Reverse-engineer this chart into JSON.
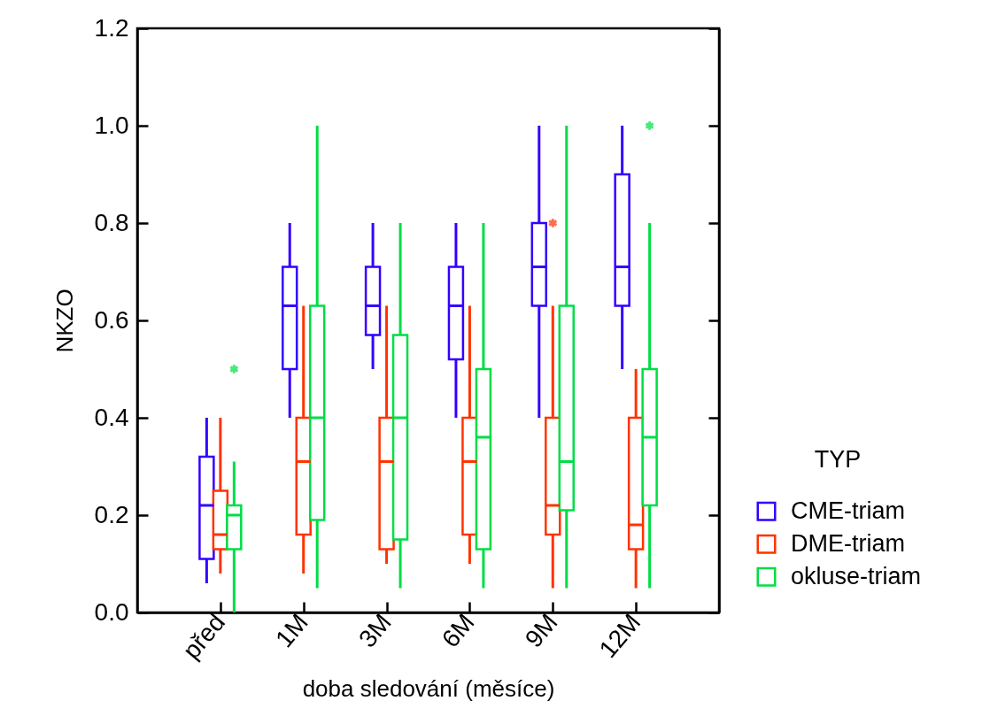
{
  "chart_data": {
    "type": "box",
    "xlabel": "doba sledování (měsíce)",
    "ylabel": "NKZO",
    "legend_title": "TYP",
    "legend": "right",
    "categories": [
      "před",
      "1M",
      "3M",
      "6M",
      "9M",
      "12M"
    ],
    "ylim": [
      0,
      1.2
    ],
    "yticks": [
      {
        "value": 0,
        "label": "0.0"
      },
      0.2,
      0.4,
      0.6,
      0.8,
      {
        "value": 1,
        "label": "1.0"
      },
      1.2
    ],
    "series": [
      {
        "name": "CME-triam",
        "color": "#3300ff",
        "boxes": [
          {
            "low": 0.06,
            "q1": 0.11,
            "median": 0.22,
            "q3": 0.32,
            "high": 0.4
          },
          {
            "low": 0.4,
            "q1": 0.5,
            "median": 0.63,
            "q3": 0.71,
            "high": 0.8
          },
          {
            "low": 0.5,
            "q1": 0.57,
            "median": 0.63,
            "q3": 0.71,
            "high": 0.8
          },
          {
            "low": 0.4,
            "q1": 0.52,
            "median": 0.63,
            "q3": 0.71,
            "high": 0.8
          },
          {
            "low": 0.4,
            "q1": 0.63,
            "median": 0.71,
            "q3": 0.8,
            "high": 1.0
          },
          {
            "low": 0.5,
            "q1": 0.63,
            "median": 0.71,
            "q3": 0.9,
            "high": 1.0
          }
        ]
      },
      {
        "name": "DME-triam",
        "color": "#ff3300",
        "boxes": [
          {
            "low": 0.08,
            "q1": 0.13,
            "median": 0.16,
            "q3": 0.25,
            "high": 0.4
          },
          {
            "low": 0.08,
            "q1": 0.16,
            "median": 0.31,
            "q3": 0.4,
            "high": 0.63
          },
          {
            "low": 0.1,
            "q1": 0.13,
            "median": 0.31,
            "q3": 0.4,
            "high": 0.63
          },
          {
            "low": 0.1,
            "q1": 0.16,
            "median": 0.31,
            "q3": 0.4,
            "high": 0.63
          },
          {
            "low": 0.05,
            "q1": 0.16,
            "median": 0.22,
            "q3": 0.4,
            "high": 0.63,
            "outliers": [
              0.8
            ]
          },
          {
            "low": 0.05,
            "q1": 0.13,
            "median": 0.18,
            "q3": 0.4,
            "high": 0.5
          }
        ]
      },
      {
        "name": "okluse-triam",
        "color": "#00dd44",
        "boxes": [
          {
            "low": 0,
            "q1": 0.13,
            "median": 0.2,
            "q3": 0.22,
            "high": 0.31,
            "outliers": [
              0.5
            ]
          },
          {
            "low": 0.05,
            "q1": 0.19,
            "median": 0.4,
            "q3": 0.63,
            "high": 1.0
          },
          {
            "low": 0.05,
            "q1": 0.15,
            "median": 0.4,
            "q3": 0.57,
            "high": 0.8
          },
          {
            "low": 0.05,
            "q1": 0.13,
            "median": 0.36,
            "q3": 0.5,
            "high": 0.8
          },
          {
            "low": 0.05,
            "q1": 0.21,
            "median": 0.31,
            "q3": 0.63,
            "high": 1.0
          },
          {
            "low": 0.05,
            "q1": 0.22,
            "median": 0.36,
            "q3": 0.5,
            "high": 0.8,
            "outliers": [
              1.0
            ]
          }
        ]
      }
    ]
  }
}
